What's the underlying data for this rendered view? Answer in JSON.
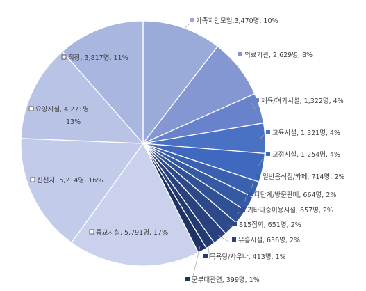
{
  "chart_data": {
    "type": "pie",
    "start_angle_deg": 0,
    "direction": "clockwise",
    "label_marker_style": "square",
    "slices": [
      {
        "name": "가족지인모임",
        "count": 3470,
        "percent": 10,
        "label": "가족지인모임,3,470명, 10%",
        "color": "#9aabd9",
        "marker": "#9aabd9"
      },
      {
        "name": "의료기관",
        "count": 2629,
        "percent": 8,
        "label": "의료기관, 2,629명, 8%",
        "color": "#8597d3",
        "marker": "#8597d3"
      },
      {
        "name": "체육/여가시설",
        "count": 1322,
        "percent": 4,
        "label": "체육/여가시설, 1,322명, 4%",
        "color": "#6882cc",
        "marker": "#6882cc"
      },
      {
        "name": "교육시설",
        "count": 1321,
        "percent": 4,
        "label": "교육시설, 1,321명, 4%",
        "color": "#4a72c4",
        "marker": "#4a72c4"
      },
      {
        "name": "교정시설",
        "count": 1254,
        "percent": 4,
        "label": "교정시설, 1,254명, 4%",
        "color": "#3e69be",
        "marker": "#3e69be"
      },
      {
        "name": "일반음식점/카페",
        "count": 714,
        "percent": 2,
        "label": "일반음식점/카페, 714명, 2%",
        "color": "#3a61b0",
        "marker": "#3a61b0"
      },
      {
        "name": "다단계/방문판매",
        "count": 664,
        "percent": 2,
        "label": "다단계/방문판매, 664명, 2%",
        "color": "#3659a3",
        "marker": "#3659a3"
      },
      {
        "name": "기타다중이용시설",
        "count": 657,
        "percent": 2,
        "label": "기타다중이용시설, 657명, 2%",
        "color": "#315196",
        "marker": "#315196"
      },
      {
        "name": "815집회",
        "count": 651,
        "percent": 2,
        "label": "815집회, 651명, 2%",
        "color": "#2d498a",
        "marker": "#2d498a"
      },
      {
        "name": "유흥시설",
        "count": 636,
        "percent": 2,
        "label": "유흥시설, 636명, 2%",
        "color": "#29427e",
        "marker": "#29427e"
      },
      {
        "name": "목욕탕/사우나",
        "count": 413,
        "percent": 1,
        "label": "목욕탕/사우나, 413명, 1%",
        "color": "#243a72",
        "marker": "#243a72"
      },
      {
        "name": "군부대관련",
        "count": 399,
        "percent": 1,
        "label": "군부대관련, 399명, 1%",
        "color": "#1f3266",
        "marker": "#1f3266"
      },
      {
        "name": "종교시설",
        "count": 5791,
        "percent": 17,
        "label": "종교시설, 5,791명, 17%",
        "color": "#c9d1ec",
        "marker": "#ffffff"
      },
      {
        "name": "신천지",
        "count": 5214,
        "percent": 16,
        "label": "신천지, 5,214명, 16%",
        "color": "#c3cbea",
        "marker": "#ffffff"
      },
      {
        "name": "요양시설",
        "count": 4271,
        "percent": 13,
        "label": "요양시설, 4,271명",
        "label_line2": "13%",
        "color": "#b8c3e6",
        "marker": "#ffffff"
      },
      {
        "name": "직장",
        "count": 3817,
        "percent": 11,
        "label": "직장, 3,817명, 11%",
        "color": "#a9b7e0",
        "marker": "#ffffff"
      }
    ]
  }
}
